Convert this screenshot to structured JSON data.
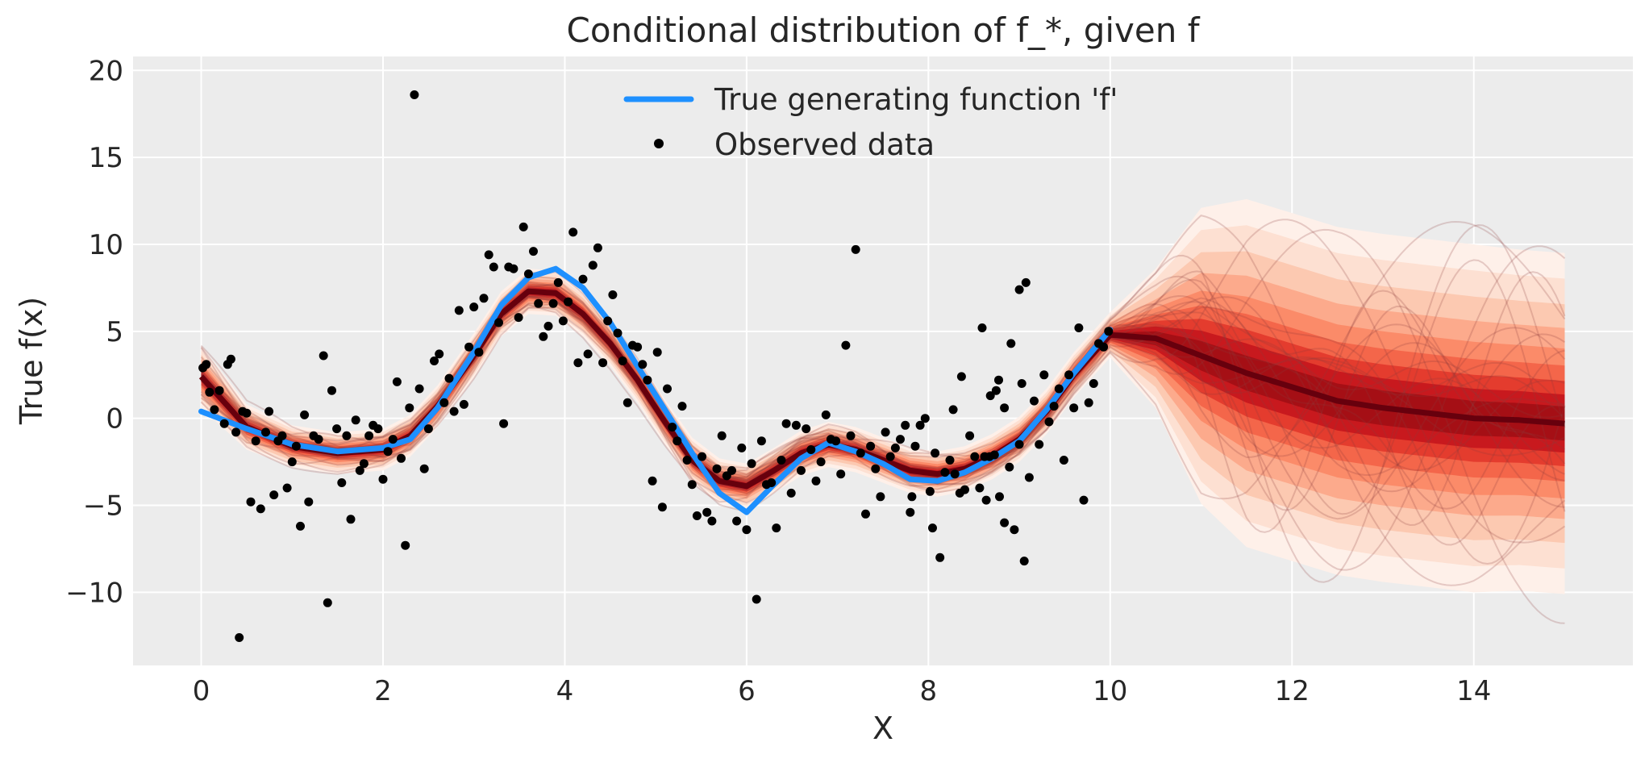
{
  "colors": {
    "plot_background": "#ECECEC",
    "grid": "#FFFFFF",
    "true_function": "#1E90FF",
    "observed": "#000000",
    "band_light": "#FEE5D9",
    "band_mid": "#FC9272",
    "band_dark": "#CB181D",
    "median": "#67000D",
    "sample_lines": "#8B3A3A"
  },
  "chart_data": {
    "type": "line",
    "title": "Conditional distribution of f_*, given f",
    "xlabel": "X",
    "ylabel": "True f(x)",
    "xlim": [
      -0.75,
      15.75
    ],
    "ylim": [
      -14.2,
      20.8
    ],
    "xticks": [
      0,
      2,
      4,
      6,
      8,
      10,
      12,
      14
    ],
    "xtick_labels": [
      "0",
      "2",
      "4",
      "6",
      "8",
      "10",
      "12",
      "14"
    ],
    "yticks": [
      -10,
      -5,
      0,
      5,
      10,
      15,
      20
    ],
    "ytick_labels": [
      "−10",
      "−5",
      "0",
      "5",
      "10",
      "15",
      "20"
    ],
    "grid": true,
    "legend": {
      "placement": "top-center",
      "entries": [
        {
          "label": "True generating function 'f'",
          "marker": "line"
        },
        {
          "label": "Observed data",
          "marker": "dot"
        }
      ]
    },
    "true_function": {
      "name": "True generating function 'f'",
      "x": [
        0,
        0.5,
        1.0,
        1.5,
        2.0,
        2.3,
        2.6,
        3.0,
        3.3,
        3.6,
        3.9,
        4.2,
        4.5,
        4.8,
        5.1,
        5.4,
        5.7,
        6.0,
        6.3,
        6.6,
        6.9,
        7.2,
        7.5,
        7.8,
        8.1,
        8.4,
        8.7,
        9.0,
        9.3,
        9.6,
        10.0
      ],
      "y": [
        0.4,
        -0.6,
        -1.5,
        -1.9,
        -1.7,
        -1.2,
        0.6,
        3.8,
        6.5,
        8.1,
        8.6,
        7.5,
        5.5,
        3.0,
        0.5,
        -2.0,
        -4.3,
        -5.4,
        -3.8,
        -2.3,
        -1.4,
        -1.9,
        -2.6,
        -3.5,
        -3.6,
        -3.1,
        -2.3,
        -1.3,
        0.5,
        2.6,
        5.1
      ]
    },
    "posterior": {
      "x": [
        0,
        0.5,
        1.0,
        1.5,
        2.0,
        2.3,
        2.6,
        3.0,
        3.3,
        3.6,
        3.9,
        4.2,
        4.5,
        4.8,
        5.1,
        5.4,
        5.7,
        6.0,
        6.3,
        6.6,
        6.9,
        7.2,
        7.5,
        7.8,
        8.1,
        8.4,
        8.7,
        9.0,
        9.3,
        9.6,
        10.0,
        10.5,
        11.0,
        11.5,
        12.0,
        12.5,
        13.0,
        13.5,
        14.0,
        14.5,
        15.0
      ],
      "median": [
        2.4,
        -0.5,
        -1.6,
        -2.0,
        -1.8,
        -1.0,
        0.7,
        3.6,
        6.0,
        7.3,
        7.2,
        6.0,
        4.3,
        2.2,
        -0.2,
        -2.4,
        -3.6,
        -3.9,
        -3.0,
        -2.0,
        -1.5,
        -1.8,
        -2.4,
        -3.0,
        -3.2,
        -2.9,
        -2.2,
        -1.2,
        0.4,
        2.5,
        4.8,
        4.6,
        3.6,
        2.6,
        1.8,
        1.0,
        0.6,
        0.3,
        0.0,
        -0.1,
        -0.3
      ],
      "spread": [
        1.8,
        1.3,
        1.2,
        1.2,
        1.2,
        1.2,
        1.2,
        1.3,
        1.3,
        1.3,
        1.3,
        1.3,
        1.3,
        1.3,
        1.3,
        1.3,
        1.3,
        1.3,
        1.3,
        1.3,
        1.3,
        1.3,
        1.3,
        1.3,
        1.3,
        1.3,
        1.3,
        1.3,
        1.3,
        1.3,
        1.3,
        4.0,
        8.5,
        10.0,
        10.0,
        10.0,
        10.0,
        10.0,
        10.0,
        9.8,
        9.8
      ],
      "sample_count": 24
    },
    "observed": {
      "name": "Observed data",
      "points": [
        [
          0.02,
          2.9
        ],
        [
          0.06,
          3.1
        ],
        [
          0.1,
          1.5
        ],
        [
          0.16,
          0.5
        ],
        [
          0.22,
          1.6
        ],
        [
          0.28,
          -0.3
        ],
        [
          0.32,
          3.1
        ],
        [
          0.36,
          3.4
        ],
        [
          0.42,
          -0.8
        ],
        [
          0.46,
          -12.6
        ],
        [
          0.5,
          0.4
        ],
        [
          0.55,
          0.3
        ],
        [
          0.6,
          -4.8
        ],
        [
          0.66,
          -1.3
        ],
        [
          0.72,
          -5.2
        ],
        [
          0.78,
          -0.8
        ],
        [
          0.82,
          0.4
        ],
        [
          0.88,
          -4.4
        ],
        [
          0.93,
          -1.3
        ],
        [
          0.98,
          -1.0
        ],
        [
          1.04,
          -4.0
        ],
        [
          1.1,
          -2.5
        ],
        [
          1.15,
          -1.6
        ],
        [
          1.2,
          -6.2
        ],
        [
          1.25,
          0.2
        ],
        [
          1.3,
          -4.8
        ],
        [
          1.36,
          -1.0
        ],
        [
          1.42,
          -1.2
        ],
        [
          1.48,
          3.6
        ],
        [
          1.53,
          -10.6
        ],
        [
          1.58,
          1.6
        ],
        [
          1.64,
          -0.6
        ],
        [
          1.7,
          -3.7
        ],
        [
          1.76,
          -1.0
        ],
        [
          1.81,
          -5.8
        ],
        [
          1.87,
          -0.1
        ],
        [
          1.92,
          -3.0
        ],
        [
          1.97,
          -2.6
        ],
        [
          2.03,
          -1.0
        ],
        [
          2.08,
          -0.4
        ],
        [
          2.14,
          -0.6
        ],
        [
          2.2,
          -3.5
        ],
        [
          2.26,
          -1.9
        ],
        [
          2.32,
          -1.2
        ],
        [
          2.37,
          2.1
        ],
        [
          2.42,
          -2.3
        ],
        [
          2.47,
          -7.3
        ],
        [
          2.52,
          0.6
        ],
        [
          2.58,
          18.6
        ],
        [
          2.64,
          1.7
        ],
        [
          2.7,
          -2.9
        ],
        [
          2.75,
          -0.6
        ],
        [
          2.82,
          3.3
        ],
        [
          2.88,
          3.7
        ],
        [
          2.94,
          0.9
        ],
        [
          3.0,
          2.3
        ],
        [
          3.06,
          0.4
        ],
        [
          3.12,
          6.2
        ],
        [
          3.18,
          0.8
        ],
        [
          3.24,
          4.1
        ],
        [
          3.3,
          6.4
        ],
        [
          3.36,
          3.8
        ],
        [
          3.42,
          6.9
        ],
        [
          3.48,
          9.4
        ],
        [
          3.54,
          8.7
        ],
        [
          3.6,
          5.5
        ],
        [
          3.66,
          -0.3
        ],
        [
          3.72,
          8.7
        ],
        [
          3.78,
          8.6
        ],
        [
          3.84,
          5.8
        ],
        [
          3.9,
          11.0
        ],
        [
          3.96,
          8.3
        ],
        [
          4.02,
          9.6
        ],
        [
          4.08,
          6.6
        ],
        [
          4.14,
          4.7
        ],
        [
          4.2,
          5.3
        ],
        [
          4.26,
          6.6
        ],
        [
          4.32,
          7.8
        ],
        [
          4.38,
          5.6
        ],
        [
          4.44,
          6.7
        ],
        [
          4.5,
          10.7
        ],
        [
          4.56,
          3.2
        ],
        [
          4.62,
          8.0
        ],
        [
          4.68,
          3.7
        ],
        [
          4.74,
          8.8
        ],
        [
          4.8,
          9.8
        ],
        [
          4.86,
          3.2
        ],
        [
          4.92,
          5.6
        ],
        [
          4.98,
          7.1
        ],
        [
          5.04,
          4.9
        ],
        [
          5.1,
          3.3
        ],
        [
          5.16,
          0.9
        ],
        [
          5.22,
          4.2
        ],
        [
          5.28,
          4.1
        ],
        [
          5.34,
          3.1
        ],
        [
          5.4,
          2.2
        ],
        [
          5.46,
          -3.6
        ],
        [
          5.52,
          3.8
        ],
        [
          5.58,
          -5.1
        ],
        [
          5.64,
          1.7
        ],
        [
          5.7,
          -0.5
        ],
        [
          5.76,
          -1.3
        ],
        [
          5.82,
          0.7
        ],
        [
          5.88,
          -2.4
        ],
        [
          5.94,
          -3.8
        ],
        [
          6.0,
          -5.6
        ],
        [
          6.06,
          -2.2
        ],
        [
          6.12,
          -5.4
        ],
        [
          6.18,
          -5.9
        ],
        [
          6.24,
          -2.9
        ],
        [
          6.3,
          -1.0
        ],
        [
          6.36,
          -3.3
        ],
        [
          6.42,
          -3.0
        ],
        [
          6.48,
          -5.9
        ],
        [
          6.54,
          -1.7
        ],
        [
          6.6,
          -6.4
        ],
        [
          6.66,
          -2.6
        ],
        [
          6.72,
          -10.4
        ],
        [
          6.78,
          -1.3
        ],
        [
          6.84,
          -3.8
        ],
        [
          6.9,
          -3.7
        ],
        [
          6.96,
          -6.3
        ],
        [
          7.02,
          -2.4
        ],
        [
          7.08,
          -0.3
        ],
        [
          7.14,
          -4.3
        ],
        [
          7.2,
          -0.4
        ],
        [
          7.26,
          -3.0
        ],
        [
          7.32,
          -0.6
        ],
        [
          7.38,
          -1.8
        ],
        [
          7.44,
          -3.6
        ],
        [
          7.5,
          -2.5
        ],
        [
          7.56,
          0.2
        ],
        [
          7.62,
          -1.2
        ],
        [
          7.68,
          -1.3
        ],
        [
          7.74,
          -3.2
        ],
        [
          7.8,
          4.2
        ],
        [
          7.86,
          -1.0
        ],
        [
          7.92,
          9.7
        ],
        [
          7.98,
          -2.0
        ],
        [
          8.04,
          -5.5
        ],
        [
          8.1,
          -1.6
        ],
        [
          8.16,
          -2.9
        ],
        [
          8.22,
          -4.5
        ],
        [
          8.28,
          -0.8
        ],
        [
          8.34,
          -2.2
        ],
        [
          8.4,
          -1.7
        ],
        [
          8.46,
          -1.2
        ],
        [
          8.52,
          -0.4
        ],
        [
          8.58,
          -5.4
        ],
        [
          8.64,
          -1.6
        ],
        [
          8.7,
          -0.4
        ],
        [
          8.76,
          0.0
        ],
        [
          8.82,
          -4.2
        ],
        [
          8.88,
          -2.0
        ],
        [
          8.94,
          -8.0
        ],
        [
          9.0,
          -3.1
        ],
        [
          9.06,
          -2.4
        ],
        [
          9.12,
          -3.2
        ],
        [
          9.18,
          -4.3
        ],
        [
          9.24,
          -4.1
        ],
        [
          9.3,
          -1.0
        ],
        [
          9.36,
          -2.2
        ],
        [
          9.42,
          -4.0
        ],
        [
          9.48,
          -2.2
        ],
        [
          9.54,
          -2.2
        ],
        [
          9.6,
          -2.1
        ],
        [
          9.66,
          -4.5
        ],
        [
          9.72,
          -6.0
        ],
        [
          9.78,
          -2.8
        ],
        [
          9.84,
          -6.4
        ],
        [
          9.9,
          -1.5
        ],
        [
          9.96,
          -8.2
        ],
        [
          10.02,
          -3.4
        ],
        [
          10.08,
          1.0
        ],
        [
          10.14,
          -1.5
        ],
        [
          10.2,
          2.5
        ],
        [
          10.26,
          -0.2
        ],
        [
          10.32,
          0.7
        ],
        [
          10.38,
          1.7
        ],
        [
          10.44,
          -2.4
        ],
        [
          10.5,
          2.5
        ],
        [
          10.56,
          0.6
        ],
        [
          10.62,
          5.2
        ],
        [
          10.68,
          -4.7
        ],
        [
          10.74,
          0.9
        ],
        [
          10.8,
          2.0
        ],
        [
          10.86,
          4.3
        ],
        [
          10.92,
          4.1
        ],
        [
          10.98,
          5.0
        ],
        [
          9.55,
          1.3
        ],
        [
          9.65,
          2.2
        ],
        [
          9.8,
          4.3
        ],
        [
          9.9,
          7.4
        ],
        [
          9.98,
          7.8
        ],
        [
          9.93,
          2.0
        ],
        [
          9.72,
          0.6
        ],
        [
          9.62,
          1.6
        ],
        [
          9.5,
          -4.7
        ],
        [
          9.45,
          5.2
        ],
        [
          9.2,
          2.4
        ],
        [
          9.1,
          0.5
        ],
        [
          8.85,
          -6.3
        ],
        [
          8.6,
          -4.5
        ]
      ]
    }
  }
}
